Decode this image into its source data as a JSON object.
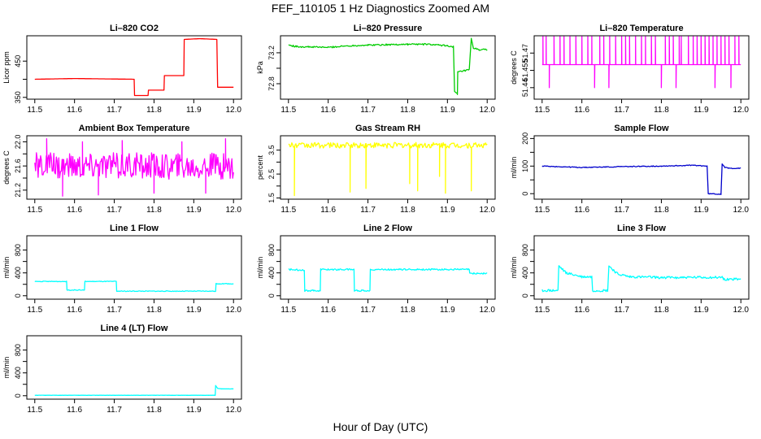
{
  "page_title": "FEF_110105  1 Hz Diagnostics Zoomed AM",
  "bottom_label": "Hour of Day (UTC)",
  "chart_data": [
    {
      "type": "line",
      "title": "Li–820 CO2",
      "ylabel": "Licor ppm",
      "color": "#ff0000",
      "xlim": [
        11.48,
        12.02
      ],
      "ylim": [
        345,
        520
      ],
      "x_ticks": [
        11.5,
        11.6,
        11.7,
        11.8,
        11.9,
        12.0
      ],
      "x_tick_labels": [
        "11.5",
        "11.6",
        "11.7",
        "11.8",
        "11.9",
        "12.0"
      ],
      "y_ticks": [
        350,
        400,
        450
      ],
      "y_tick_labels": [
        "350",
        "",
        "450"
      ],
      "x": [
        11.5,
        11.6,
        11.75,
        11.751,
        11.785,
        11.786,
        11.825,
        11.826,
        11.875,
        11.876,
        11.915,
        11.958,
        11.96,
        12.0
      ],
      "y": [
        400,
        402,
        400,
        355,
        355,
        370,
        370,
        410,
        410,
        510,
        512,
        510,
        378,
        378
      ],
      "noise": 0,
      "spikes": []
    },
    {
      "type": "line",
      "title": "Li–820 Pressure",
      "ylabel": "kPa",
      "color": "#00cc00",
      "xlim": [
        11.48,
        12.02
      ],
      "ylim": [
        72.6,
        73.42
      ],
      "x_ticks": [
        11.5,
        11.6,
        11.7,
        11.8,
        11.9,
        12.0
      ],
      "x_tick_labels": [
        "11.5",
        "11.6",
        "11.7",
        "11.8",
        "11.9",
        "12.0"
      ],
      "y_ticks": [
        72.8,
        73.0,
        73.2
      ],
      "y_tick_labels": [
        "72.8",
        "",
        "73.2"
      ],
      "x": [
        11.5,
        11.52,
        11.6,
        11.65,
        11.7,
        11.8,
        11.85,
        11.9,
        11.915,
        11.918,
        11.925,
        11.926,
        11.955,
        11.96,
        11.965,
        11.98,
        12.0
      ],
      "y": [
        73.3,
        73.28,
        73.27,
        73.29,
        73.3,
        73.31,
        73.31,
        73.29,
        73.28,
        72.7,
        72.66,
        72.95,
        72.98,
        73.38,
        73.26,
        73.24,
        73.24
      ],
      "noise": 0.01,
      "spikes": []
    },
    {
      "type": "line",
      "title": "Li–820 Temperature",
      "ylabel": "degrees C",
      "color": "#ff00ff",
      "xlim": [
        11.48,
        12.02
      ],
      "ylim": [
        51.43,
        51.485
      ],
      "x_ticks": [
        11.5,
        11.6,
        11.7,
        11.8,
        11.9,
        12.0
      ],
      "x_tick_labels": [
        "11.5",
        "11.6",
        "11.7",
        "11.8",
        "11.9",
        "12.0"
      ],
      "y_ticks": [
        51.44,
        51.455,
        51.47
      ],
      "y_tick_labels": [
        "51.44",
        "51.455",
        "51.47"
      ],
      "x": [
        11.5,
        12.0
      ],
      "y": [
        51.46,
        51.46
      ],
      "noise": 0,
      "spikes": [
        [
          11.502,
          51.485
        ],
        [
          11.51,
          51.485
        ],
        [
          11.518,
          51.44
        ],
        [
          11.53,
          51.485
        ],
        [
          11.545,
          51.485
        ],
        [
          11.555,
          51.485
        ],
        [
          11.57,
          51.485
        ],
        [
          11.585,
          51.485
        ],
        [
          11.6,
          51.485
        ],
        [
          11.615,
          51.485
        ],
        [
          11.625,
          51.485
        ],
        [
          11.632,
          51.44
        ],
        [
          11.645,
          51.485
        ],
        [
          11.655,
          51.485
        ],
        [
          11.668,
          51.44
        ],
        [
          11.67,
          51.485
        ],
        [
          11.685,
          51.485
        ],
        [
          11.7,
          51.485
        ],
        [
          11.71,
          51.485
        ],
        [
          11.72,
          51.485
        ],
        [
          11.735,
          51.485
        ],
        [
          11.75,
          51.485
        ],
        [
          11.76,
          51.485
        ],
        [
          11.775,
          51.485
        ],
        [
          11.785,
          51.485
        ],
        [
          11.8,
          51.44
        ],
        [
          11.81,
          51.485
        ],
        [
          11.82,
          51.485
        ],
        [
          11.83,
          51.485
        ],
        [
          11.837,
          51.44
        ],
        [
          11.845,
          51.485
        ],
        [
          11.85,
          51.485
        ],
        [
          11.868,
          51.485
        ],
        [
          11.88,
          51.485
        ],
        [
          11.89,
          51.485
        ],
        [
          11.9,
          51.485
        ],
        [
          11.91,
          51.485
        ],
        [
          11.92,
          51.485
        ],
        [
          11.93,
          51.485
        ],
        [
          11.935,
          51.44
        ],
        [
          11.94,
          51.485
        ],
        [
          11.95,
          51.485
        ],
        [
          11.96,
          51.485
        ],
        [
          11.97,
          51.485
        ],
        [
          11.975,
          51.44
        ],
        [
          11.985,
          51.485
        ],
        [
          11.995,
          51.485
        ]
      ]
    },
    {
      "type": "line",
      "title": "Ambient Box Temperature",
      "ylabel": "degrees C",
      "color": "#ff00ff",
      "xlim": [
        11.48,
        12.02
      ],
      "ylim": [
        21.05,
        22.1
      ],
      "x_ticks": [
        11.5,
        11.6,
        11.7,
        11.8,
        11.9,
        12.0
      ],
      "x_tick_labels": [
        "11.5",
        "11.6",
        "11.7",
        "11.8",
        "11.9",
        "12.0"
      ],
      "y_ticks": [
        21.2,
        21.4,
        21.6,
        21.8,
        22.0
      ],
      "y_tick_labels": [
        "21.2",
        "",
        "21.6",
        "",
        "22.0"
      ],
      "x": [
        11.5,
        12.0
      ],
      "y": [
        21.6,
        21.6
      ],
      "noise": 0.22,
      "spikes": [
        [
          11.53,
          22.05
        ],
        [
          11.57,
          21.1
        ],
        [
          11.62,
          22.0
        ],
        [
          11.66,
          21.12
        ],
        [
          11.72,
          22.02
        ],
        [
          11.8,
          21.15
        ],
        [
          11.87,
          22.0
        ],
        [
          11.93,
          21.15
        ],
        [
          11.98,
          22.05
        ]
      ]
    },
    {
      "type": "line",
      "title": "Gas Stream RH",
      "ylabel": "percent",
      "color": "#ffff00",
      "xlim": [
        11.48,
        12.02
      ],
      "ylim": [
        1.45,
        4.1
      ],
      "x_ticks": [
        11.5,
        11.6,
        11.7,
        11.8,
        11.9,
        12.0
      ],
      "x_tick_labels": [
        "11.5",
        "11.6",
        "11.7",
        "11.8",
        "11.9",
        "12.0"
      ],
      "y_ticks": [
        1.5,
        2.0,
        2.5,
        3.0,
        3.5
      ],
      "y_tick_labels": [
        "1.5",
        "",
        "2.5",
        "",
        "3.5"
      ],
      "x": [
        11.5,
        12.0
      ],
      "y": [
        3.7,
        3.7
      ],
      "noise": 0.12,
      "spikes": [
        [
          11.515,
          1.6
        ],
        [
          11.655,
          1.75
        ],
        [
          11.695,
          1.9
        ],
        [
          11.805,
          2.1
        ],
        [
          11.825,
          1.8
        ],
        [
          11.88,
          2.4
        ],
        [
          11.895,
          1.7
        ],
        [
          11.96,
          1.8
        ]
      ]
    },
    {
      "type": "line",
      "title": "Sample Flow",
      "ylabel": "ml/min",
      "color": "#0000cc",
      "xlim": [
        11.48,
        12.02
      ],
      "ylim": [
        -20,
        210
      ],
      "x_ticks": [
        11.5,
        11.6,
        11.7,
        11.8,
        11.9,
        12.0
      ],
      "x_tick_labels": [
        "11.5",
        "11.6",
        "11.7",
        "11.8",
        "11.9",
        "12.0"
      ],
      "y_ticks": [
        0,
        50,
        100,
        150,
        200
      ],
      "y_tick_labels": [
        "0",
        "",
        "100",
        "",
        "200"
      ],
      "x": [
        11.5,
        11.6,
        11.7,
        11.8,
        11.88,
        11.915,
        11.918,
        11.95,
        11.953,
        11.96,
        11.97,
        12.0
      ],
      "y": [
        100,
        95,
        98,
        100,
        103,
        100,
        0,
        -2,
        108,
        95,
        92,
        92
      ],
      "noise": 1.5,
      "spikes": []
    },
    {
      "type": "line",
      "title": "Line 1 Flow",
      "ylabel": "ml/min",
      "color": "#00ffff",
      "xlim": [
        11.48,
        12.02
      ],
      "ylim": [
        -60,
        1050
      ],
      "x_ticks": [
        11.5,
        11.6,
        11.7,
        11.8,
        11.9,
        12.0
      ],
      "x_tick_labels": [
        "11.5",
        "11.6",
        "11.7",
        "11.8",
        "11.9",
        "12.0"
      ],
      "y_ticks": [
        0,
        200,
        400,
        600,
        800
      ],
      "y_tick_labels": [
        "0",
        "",
        "400",
        "",
        "800"
      ],
      "x": [
        11.5,
        11.58,
        11.581,
        11.625,
        11.626,
        11.705,
        11.706,
        11.955,
        11.956,
        12.0
      ],
      "y": [
        250,
        250,
        100,
        100,
        250,
        250,
        80,
        80,
        210,
        210
      ],
      "noise": 6,
      "spikes": []
    },
    {
      "type": "line",
      "title": "Line 2 Flow",
      "ylabel": "ml/min",
      "color": "#00ffff",
      "xlim": [
        11.48,
        12.02
      ],
      "ylim": [
        -60,
        1050
      ],
      "x_ticks": [
        11.5,
        11.6,
        11.7,
        11.8,
        11.9,
        12.0
      ],
      "x_tick_labels": [
        "11.5",
        "11.6",
        "11.7",
        "11.8",
        "11.9",
        "12.0"
      ],
      "y_ticks": [
        0,
        200,
        400,
        600,
        800
      ],
      "y_tick_labels": [
        "0",
        "",
        "400",
        "",
        "800"
      ],
      "x": [
        11.5,
        11.54,
        11.541,
        11.58,
        11.581,
        11.665,
        11.666,
        11.705,
        11.706,
        11.955,
        11.956,
        12.0
      ],
      "y": [
        460,
        450,
        90,
        90,
        460,
        460,
        90,
        90,
        460,
        460,
        390,
        390
      ],
      "noise": 14,
      "spikes": []
    },
    {
      "type": "line",
      "title": "Line 3 Flow",
      "ylabel": "ml/min",
      "color": "#00ffff",
      "xlim": [
        11.48,
        12.02
      ],
      "ylim": [
        -60,
        1050
      ],
      "x_ticks": [
        11.5,
        11.6,
        11.7,
        11.8,
        11.9,
        12.0
      ],
      "x_tick_labels": [
        "11.5",
        "11.6",
        "11.7",
        "11.8",
        "11.9",
        "12.0"
      ],
      "y_ticks": [
        0,
        200,
        400,
        600,
        800
      ],
      "y_tick_labels": [
        "0",
        "",
        "400",
        "",
        "800"
      ],
      "x": [
        11.5,
        11.54,
        11.542,
        11.56,
        11.6,
        11.625,
        11.627,
        11.665,
        11.668,
        11.69,
        11.72,
        11.8,
        11.955,
        11.956,
        12.0
      ],
      "y": [
        90,
        90,
        520,
        400,
        330,
        330,
        90,
        90,
        520,
        380,
        330,
        320,
        320,
        290,
        290
      ],
      "noise": 22,
      "spikes": []
    },
    {
      "type": "line",
      "title": "Line 4 (LT) Flow",
      "ylabel": "ml/min",
      "color": "#00ffff",
      "xlim": [
        11.48,
        12.02
      ],
      "ylim": [
        -60,
        1050
      ],
      "x_ticks": [
        11.5,
        11.6,
        11.7,
        11.8,
        11.9,
        12.0
      ],
      "x_tick_labels": [
        "11.5",
        "11.6",
        "11.7",
        "11.8",
        "11.9",
        "12.0"
      ],
      "y_ticks": [
        0,
        200,
        400,
        600,
        800
      ],
      "y_tick_labels": [
        "0",
        "",
        "400",
        "",
        "800"
      ],
      "x": [
        11.5,
        11.954,
        11.955,
        11.96,
        11.97,
        12.0
      ],
      "y": [
        8,
        8,
        180,
        130,
        120,
        120
      ],
      "noise": 2,
      "spikes": []
    }
  ]
}
